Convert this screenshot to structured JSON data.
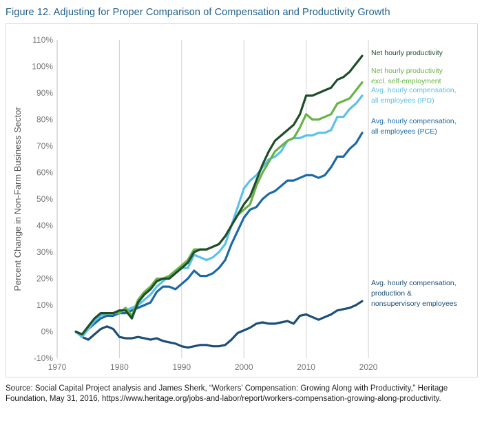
{
  "figure_title": "Figure 12. Adjusting for Proper Comparison of Compensation and Productivity Growth",
  "source_note": "Source: Social Capital Project analysis and James Sherk, “Workers’ Compensation: Growing Along with Productivity,” Heritage Foundation, May 31, 2016, https://www.heritage.org/jobs-and-labor/report/workers-compensation-growing-along-productivity.",
  "chart_data": {
    "type": "line",
    "title": "Figure 12. Adjusting for Proper Comparison of Compensation and Productivity Growth",
    "xlabel": "",
    "ylabel": "Percent Change in Non-Farm Business Sector",
    "xlim": [
      1970,
      2020
    ],
    "ylim": [
      -10,
      110
    ],
    "xticks": [
      1970,
      1980,
      1990,
      2000,
      2010,
      2020
    ],
    "yticks": [
      -10,
      0,
      10,
      20,
      30,
      40,
      50,
      60,
      70,
      80,
      90,
      100,
      110
    ],
    "ytick_labels": [
      "-10%",
      "0%",
      "10%",
      "20%",
      "30%",
      "40%",
      "50%",
      "60%",
      "70%",
      "80%",
      "90%",
      "100%",
      "110%"
    ],
    "grid": "vertical",
    "x": [
      1973,
      1974,
      1975,
      1976,
      1977,
      1978,
      1979,
      1980,
      1981,
      1982,
      1983,
      1984,
      1985,
      1986,
      1987,
      1988,
      1989,
      1990,
      1991,
      1992,
      1993,
      1994,
      1995,
      1996,
      1997,
      1998,
      1999,
      2000,
      2001,
      2002,
      2003,
      2004,
      2005,
      2006,
      2007,
      2008,
      2009,
      2010,
      2011,
      2012,
      2013,
      2014,
      2015,
      2016,
      2017,
      2018,
      2019
    ],
    "series": [
      {
        "name": "Net hourly productivity",
        "label_lines": [
          "Net hourly productivity"
        ],
        "color": "#1e4d2b",
        "values": [
          0,
          -1,
          2,
          5,
          7,
          7,
          7,
          8,
          8,
          5,
          11,
          14,
          16,
          19,
          20,
          20,
          22,
          24,
          26,
          30,
          31,
          31,
          32,
          33,
          36,
          40,
          44,
          48,
          51,
          57,
          63,
          68,
          72,
          74,
          76,
          78,
          82,
          89,
          89,
          90,
          91,
          92,
          95,
          96,
          98,
          101,
          104
        ]
      },
      {
        "name": "Net hourly productivity excl. self-employment",
        "label_lines": [
          "Net hourly productivity",
          "excl. self-employment"
        ],
        "color": "#67b346",
        "values": [
          0,
          -1,
          2,
          5,
          7,
          7,
          7,
          7,
          9,
          6,
          12,
          15,
          17,
          20,
          20,
          21,
          23,
          25,
          27,
          31,
          31,
          31,
          32,
          33,
          36,
          40,
          44,
          46,
          48,
          55,
          60,
          64,
          68,
          70,
          72,
          73,
          77,
          82,
          80,
          80,
          81,
          82,
          86,
          87,
          88,
          91,
          94
        ]
      },
      {
        "name": "Avg. hourly compensation, all employees (IPD)",
        "label_lines": [
          "Avg. hourly compensation,",
          "all employees (IPD)"
        ],
        "color": "#5bc0eb",
        "values": [
          0,
          -2,
          1,
          4,
          6,
          7,
          7,
          8,
          8,
          9,
          10,
          12,
          14,
          17,
          19,
          21,
          22,
          24,
          24,
          29,
          28,
          27,
          28,
          30,
          33,
          40,
          47,
          54,
          57,
          59,
          62,
          65,
          66,
          68,
          72,
          73,
          73,
          74,
          74,
          75,
          75,
          76,
          81,
          81,
          84,
          86,
          89
        ]
      },
      {
        "name": "Avg. hourly compensation, all employees (PCE)",
        "label_lines": [
          "Avg. hourly compensation,",
          "all employees (PCE)"
        ],
        "color": "#1a6aa8",
        "values": [
          0,
          -2,
          1,
          3,
          5,
          6,
          6,
          7,
          7,
          8,
          9,
          10,
          11,
          15,
          17,
          17,
          16,
          18,
          20,
          23,
          21,
          21,
          22,
          24,
          27,
          33,
          38,
          43,
          46,
          47,
          50,
          52,
          53,
          55,
          57,
          57,
          58,
          59,
          59,
          58,
          59,
          62,
          66,
          66,
          69,
          71,
          75
        ]
      },
      {
        "name": "Avg. hourly compensation, production & nonsupervisory employees",
        "label_lines": [
          "Avg. hourly compensation,",
          "production &",
          "nonsupervisory employees"
        ],
        "color": "#1b4e78",
        "values": [
          0,
          -2,
          -3,
          -1,
          1,
          2,
          1,
          -2,
          -2.5,
          -2.5,
          -2,
          -2.5,
          -3,
          -2.5,
          -3.5,
          -4,
          -4.5,
          -5.5,
          -6,
          -5.5,
          -5,
          -5,
          -5.5,
          -5.5,
          -5,
          -3,
          -0.5,
          0.5,
          1.5,
          3,
          3.5,
          3,
          3,
          3.5,
          4,
          3,
          6,
          6.5,
          5.5,
          4.5,
          5.5,
          6.5,
          8,
          8.5,
          9,
          10,
          11.5
        ]
      }
    ]
  }
}
